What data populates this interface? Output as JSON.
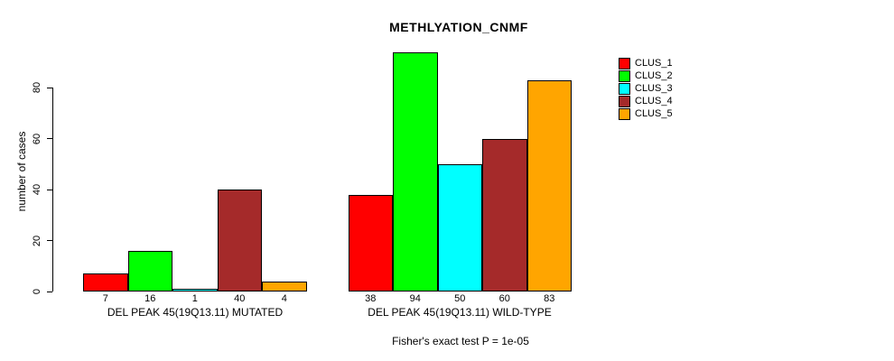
{
  "chart_data": {
    "type": "bar",
    "title": "METHLYATION_CNMF",
    "ylabel": "number of cases",
    "xlabel": "",
    "ylim": [
      0,
      94
    ],
    "yticks": [
      0,
      20,
      40,
      60,
      80
    ],
    "grid": false,
    "legend_position": "top-right",
    "series_names": [
      "CLUS_1",
      "CLUS_2",
      "CLUS_3",
      "CLUS_4",
      "CLUS_5"
    ],
    "colors": [
      "#FF0000",
      "#00FF00",
      "#00FFFF",
      "#A52A2A",
      "#FFA500"
    ],
    "groups": [
      {
        "label": "DEL PEAK 45(19Q13.11) MUTATED",
        "values": [
          7,
          16,
          1,
          40,
          4
        ]
      },
      {
        "label": "DEL PEAK 45(19Q13.11) WILD-TYPE",
        "values": [
          38,
          94,
          50,
          60,
          83
        ]
      }
    ],
    "bar_value_labels_shown": true,
    "annotation": "Fisher's exact test P = 1e-05"
  }
}
